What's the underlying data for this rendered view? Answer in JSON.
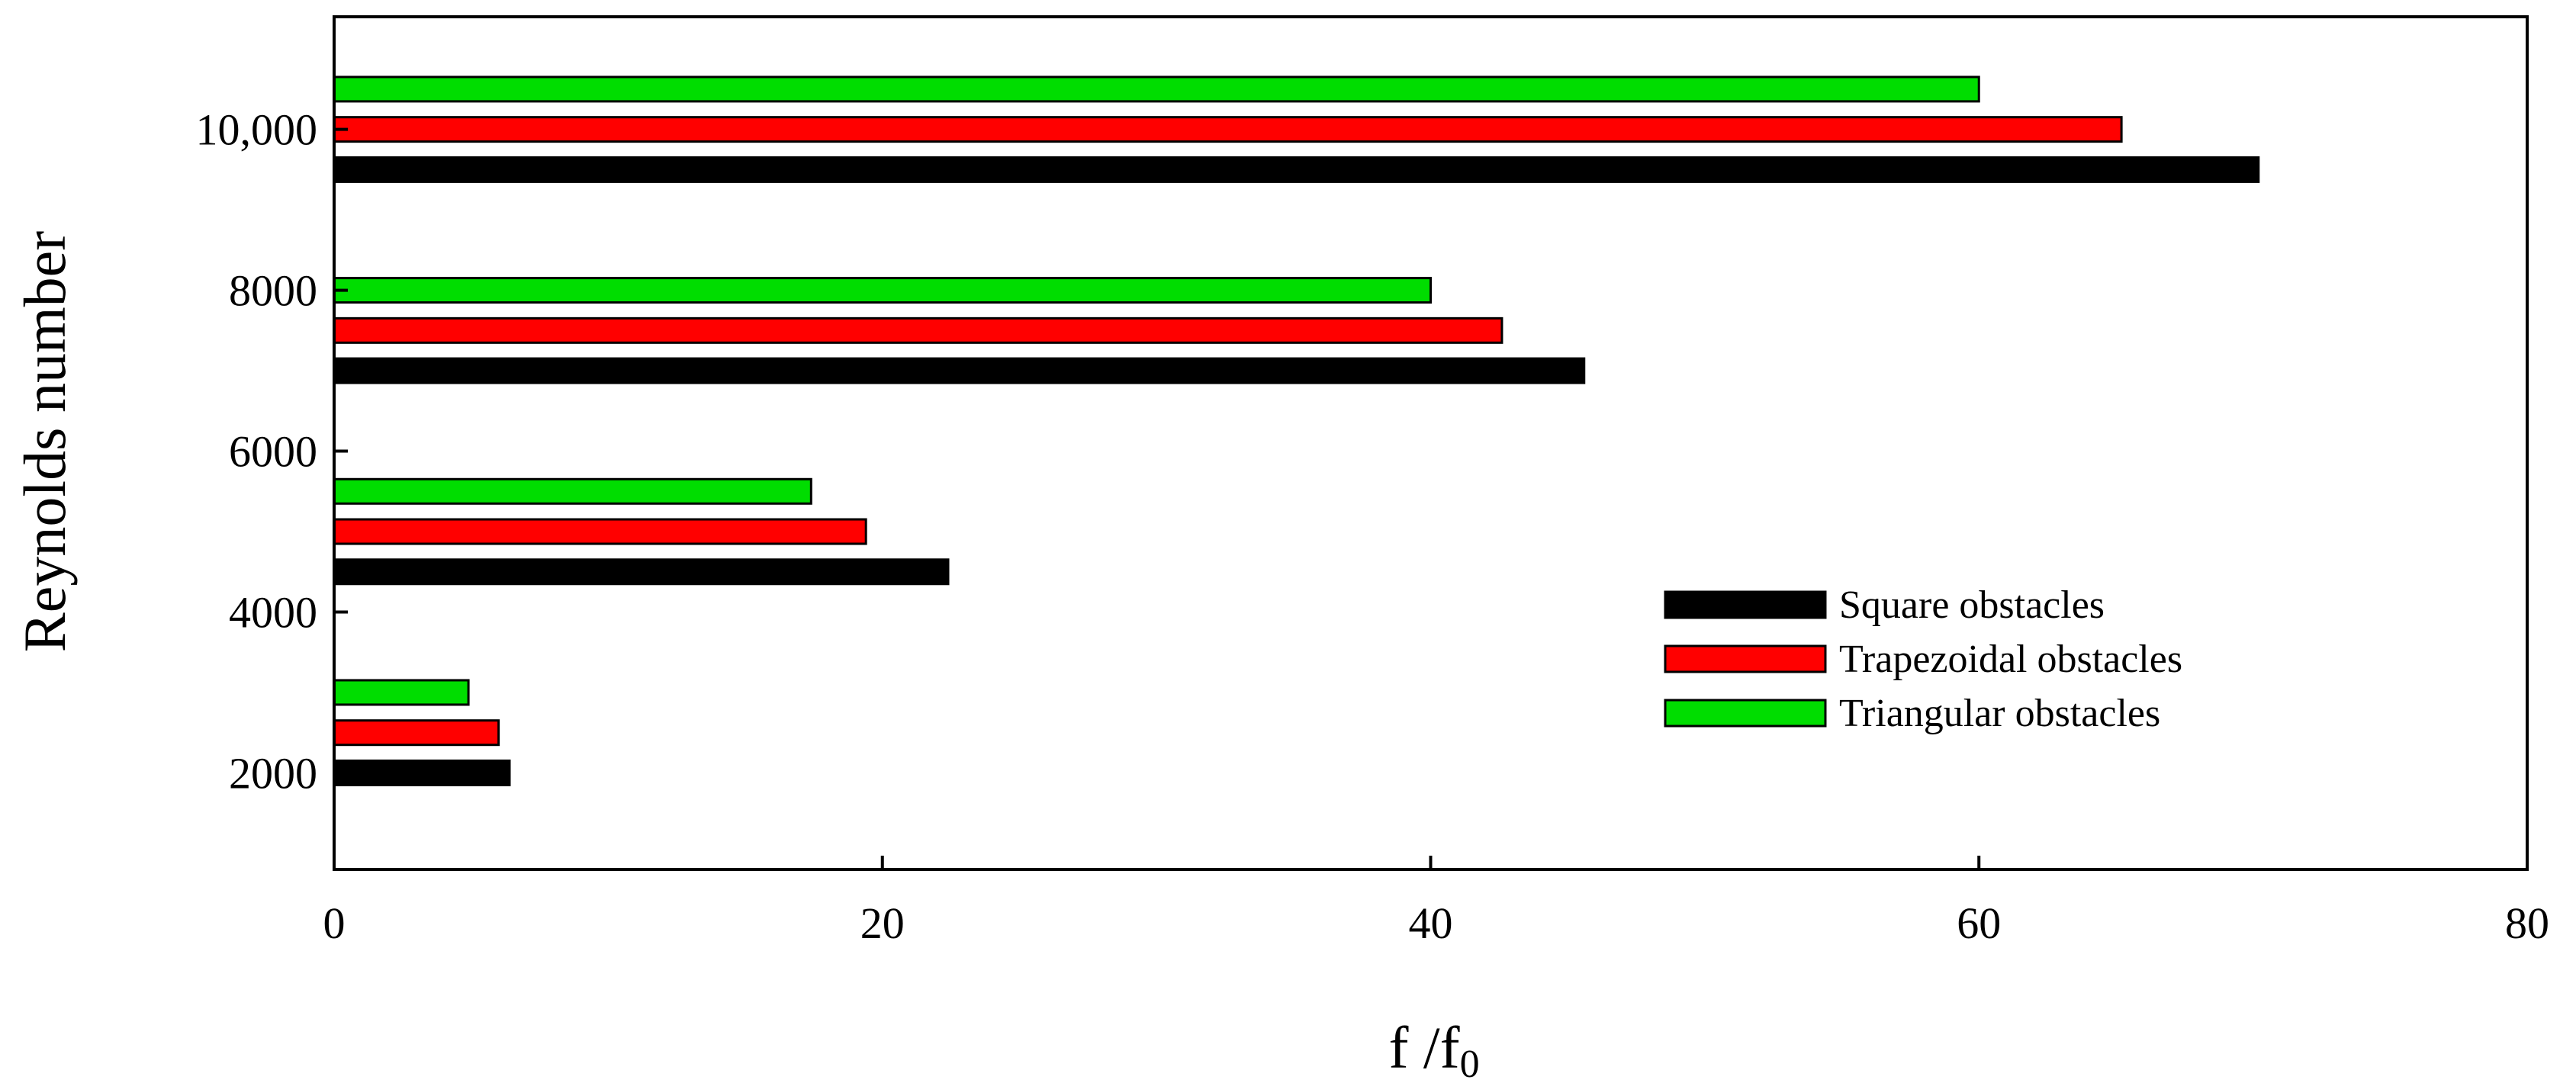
{
  "chart_data": {
    "type": "bar",
    "orientation": "horizontal",
    "title": "",
    "xlabel": "f /f",
    "xlabel_subscript": "0",
    "ylabel": "Reynolds number",
    "xlim": [
      0,
      80
    ],
    "ylim": [
      800,
      11400
    ],
    "xticks": [
      "0",
      "20",
      "40",
      "60",
      "80"
    ],
    "yticks": [
      "2000",
      "4000",
      "6000",
      "8000",
      "10,000"
    ],
    "categories": [
      2000,
      4500,
      7000,
      9500
    ],
    "series": [
      {
        "name": "Square obstacles",
        "color": "#000000",
        "y": [
          2000,
          4500,
          7000,
          9500
        ],
        "values": [
          6.4,
          22.4,
          45.6,
          70.2
        ]
      },
      {
        "name": "Trapezoidal obstacles",
        "color": "#ff0000",
        "y": [
          2500,
          5000,
          7500,
          10000
        ],
        "values": [
          6.0,
          19.4,
          42.6,
          65.2
        ]
      },
      {
        "name": "Triangular obstacles",
        "color": "#00dd00",
        "y": [
          3000,
          5500,
          8000,
          10500
        ],
        "values": [
          4.9,
          17.4,
          40.0,
          60.0
        ]
      }
    ],
    "legend_position": "lower-right",
    "grid": false
  }
}
